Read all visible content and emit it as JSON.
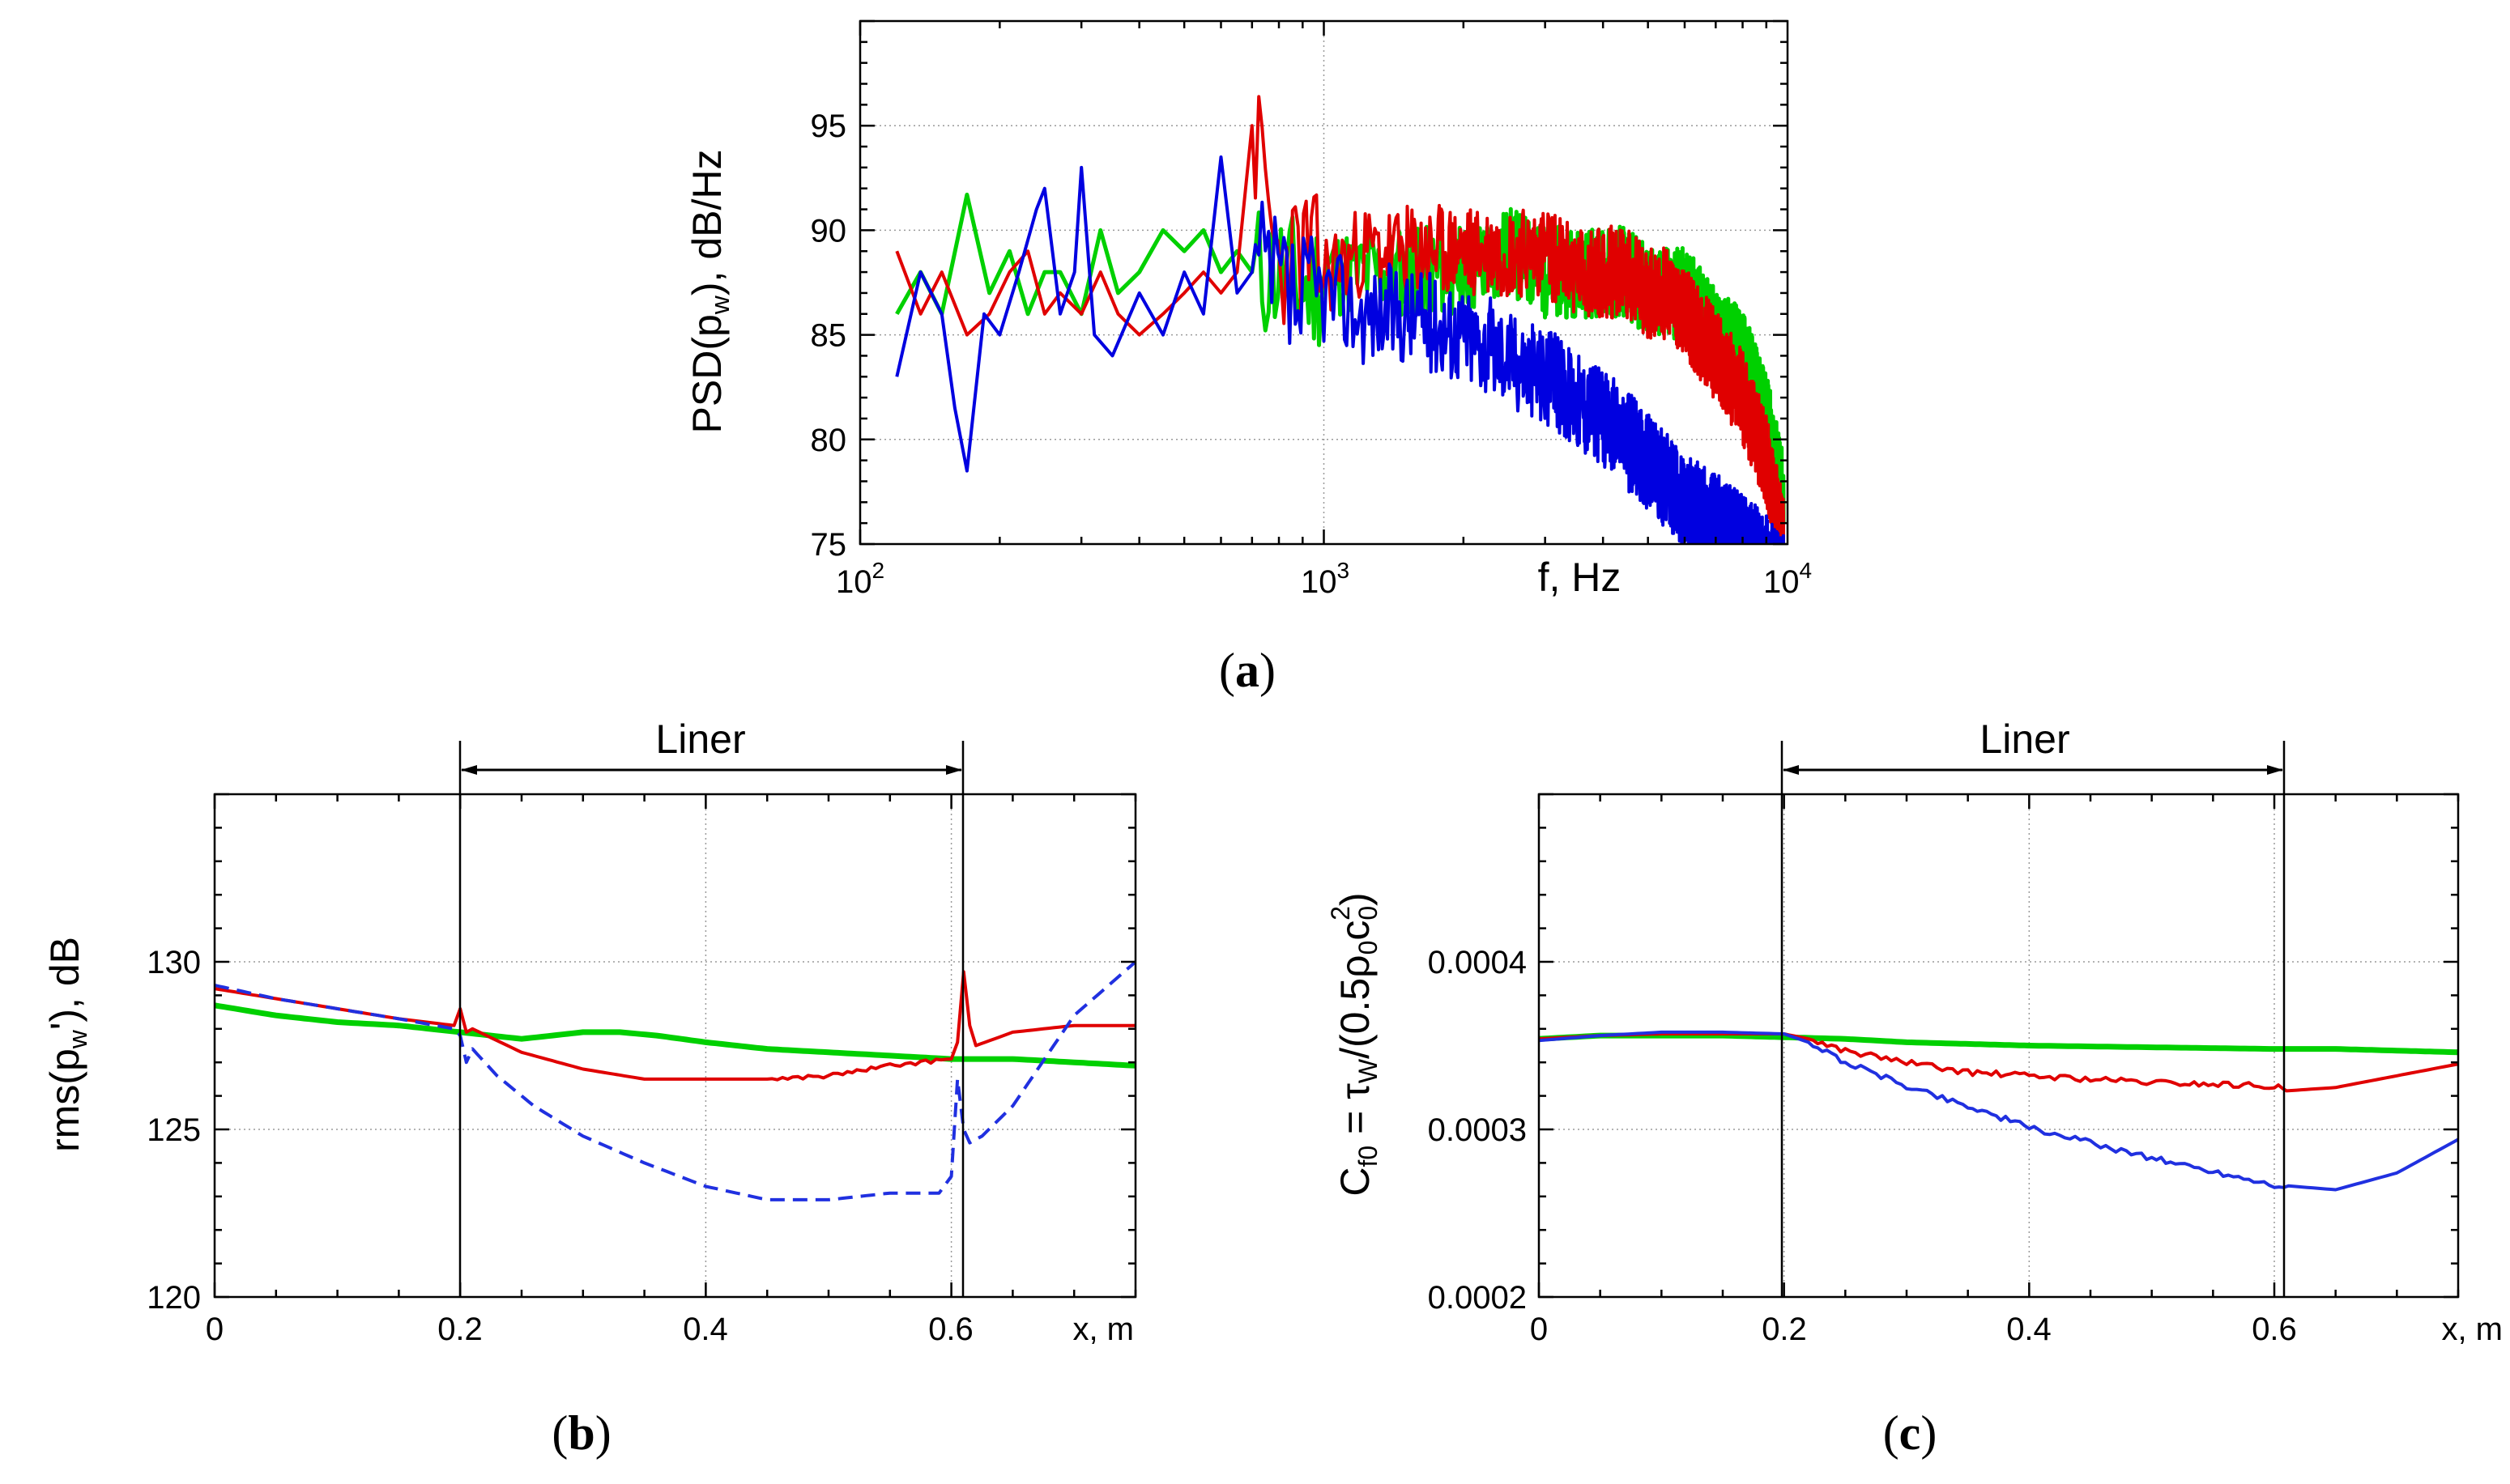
{
  "chart_data": [
    {
      "id": "a",
      "type": "line",
      "caption": "a",
      "xscale": "log",
      "xlim": [
        100,
        10000
      ],
      "ylim": [
        75,
        100
      ],
      "xlabel": "f, Hz",
      "ylabel_parts": {
        "main": "PSD(p",
        "sub": "w",
        "tail": "), dB/Hz"
      },
      "xticks": [
        {
          "base": "10",
          "exp": "2",
          "value": 100
        },
        {
          "base": "10",
          "exp": "3",
          "value": 1000
        },
        {
          "base": "10",
          "exp": "4",
          "value": 10000
        }
      ],
      "yticks": [
        75,
        80,
        85,
        90,
        95
      ],
      "grid": true,
      "series": [
        {
          "name": "green",
          "color": "#00d000",
          "width": 5,
          "dash": "",
          "x": [
            120,
            135,
            150,
            170,
            190,
            210,
            230,
            250,
            270,
            300,
            330,
            360,
            400,
            450,
            500,
            550,
            600,
            650,
            700,
            800,
            900,
            1000,
            1200,
            1500,
            2000,
            2500,
            3000,
            3500,
            4000,
            4500,
            5000,
            5500,
            6000,
            6500,
            7000,
            8000,
            9000,
            9800
          ],
          "y": [
            86,
            88,
            86,
            91.7,
            87,
            89,
            86,
            88,
            88,
            86,
            90,
            87,
            88,
            90,
            89,
            90,
            88,
            89,
            88,
            88,
            87,
            88,
            88,
            88,
            88,
            89,
            88,
            88,
            88,
            88,
            87,
            87,
            87,
            86,
            85,
            84,
            81,
            77
          ],
          "noise": 2.2,
          "seed": 11
        },
        {
          "name": "red",
          "color": "#e00000",
          "width": 4,
          "dash": "",
          "x": [
            120,
            135,
            150,
            170,
            190,
            210,
            230,
            250,
            270,
            300,
            330,
            360,
            400,
            450,
            500,
            550,
            600,
            650,
            700,
            800,
            900,
            1000,
            1200,
            1500,
            2000,
            2500,
            3000,
            3500,
            4000,
            4500,
            5000,
            5500,
            6000,
            6500,
            7000,
            8000,
            9000,
            9800
          ],
          "y": [
            89,
            86,
            88,
            85,
            86,
            88,
            89,
            86,
            87,
            86,
            88,
            86,
            85,
            86,
            87,
            88,
            87,
            88,
            95,
            88,
            89,
            88,
            89,
            89,
            89,
            89,
            89,
            88,
            88,
            88,
            87,
            87,
            86,
            85,
            84,
            82,
            79,
            75
          ],
          "noise": 2.2,
          "seed": 23
        },
        {
          "name": "blue",
          "color": "#0000e0",
          "width": 4,
          "dash": "",
          "x": [
            120,
            135,
            150,
            160,
            170,
            185,
            200,
            220,
            240,
            250,
            270,
            290,
            300,
            320,
            350,
            400,
            450,
            500,
            550,
            600,
            650,
            700,
            800,
            900,
            1000,
            1200,
            1500,
            2000,
            2500,
            3000,
            3500,
            4000,
            4500,
            5000,
            5500,
            6000,
            7000,
            8000,
            9000,
            9800
          ],
          "y": [
            83,
            88,
            86,
            81.5,
            78.5,
            86,
            85,
            88,
            91,
            92,
            86,
            88,
            93,
            85,
            84,
            87,
            85,
            88,
            86,
            93.5,
            87,
            88,
            87,
            86,
            87,
            86,
            86,
            85,
            84,
            83,
            82,
            81,
            80,
            79,
            78,
            77,
            76,
            75,
            74,
            73
          ],
          "noise": 2.4,
          "seed": 37
        }
      ]
    },
    {
      "id": "b",
      "type": "line",
      "caption": "b",
      "xlim": [
        0,
        0.75
      ],
      "ylim": [
        120,
        135
      ],
      "xlabel": "x, m",
      "ylabel_parts": {
        "main": "rms(p",
        "sub": "w",
        "tail": "'), dB"
      },
      "xticks": [
        {
          "label": "0",
          "value": 0
        },
        {
          "label": "0.2",
          "value": 0.2
        },
        {
          "label": "0.4",
          "value": 0.4
        },
        {
          "label": "0.6",
          "value": 0.6
        }
      ],
      "yticks": [
        {
          "label": "120",
          "value": 120
        },
        {
          "label": "125",
          "value": 125
        },
        {
          "label": "130",
          "value": 130
        }
      ],
      "grid": true,
      "liner": {
        "label": "Liner",
        "x_start": 0.2,
        "x_end": 0.61
      },
      "series": [
        {
          "name": "green",
          "color": "#00d000",
          "width": 7,
          "dash": "",
          "x": [
            0,
            0.05,
            0.1,
            0.15,
            0.2,
            0.25,
            0.3,
            0.33,
            0.36,
            0.4,
            0.45,
            0.5,
            0.55,
            0.6,
            0.65,
            0.7,
            0.75
          ],
          "y": [
            128.7,
            128.4,
            128.2,
            128.1,
            127.9,
            127.7,
            127.9,
            127.9,
            127.8,
            127.6,
            127.4,
            127.3,
            127.2,
            127.1,
            127.1,
            127.0,
            126.9
          ]
        },
        {
          "name": "red",
          "color": "#e00000",
          "width": 4,
          "dash": "",
          "x": [
            0,
            0.05,
            0.1,
            0.15,
            0.195,
            0.2,
            0.205,
            0.21,
            0.25,
            0.3,
            0.35,
            0.4,
            0.45,
            0.5,
            0.55,
            0.6,
            0.605,
            0.61,
            0.615,
            0.62,
            0.65,
            0.7,
            0.75
          ],
          "y": [
            129.2,
            128.9,
            128.6,
            128.3,
            128.1,
            128.6,
            127.9,
            128.0,
            127.3,
            126.8,
            126.5,
            126.5,
            126.5,
            126.6,
            126.9,
            127.1,
            127.6,
            129.7,
            128.1,
            127.5,
            127.9,
            128.1,
            128.1
          ]
        },
        {
          "name": "blue",
          "color": "#2030e0",
          "width": 4,
          "dash": "18 10",
          "x": [
            0,
            0.05,
            0.1,
            0.15,
            0.195,
            0.2,
            0.205,
            0.21,
            0.23,
            0.26,
            0.3,
            0.35,
            0.4,
            0.45,
            0.5,
            0.55,
            0.59,
            0.6,
            0.605,
            0.61,
            0.615,
            0.625,
            0.65,
            0.7,
            0.75
          ],
          "y": [
            129.3,
            128.9,
            128.6,
            128.3,
            128.0,
            127.8,
            127.0,
            127.4,
            126.6,
            125.7,
            124.8,
            124.0,
            123.3,
            122.9,
            122.9,
            123.1,
            123.1,
            123.6,
            126.5,
            125.0,
            124.6,
            124.8,
            125.7,
            128.4,
            130.0
          ]
        }
      ]
    },
    {
      "id": "c",
      "type": "line",
      "caption": "c",
      "xlim": [
        0,
        0.75
      ],
      "ylim": [
        0.0002,
        0.0005
      ],
      "xlabel": "x, m",
      "ylabel_parts": {
        "p1": "C",
        "s1": "f0",
        "p2": " = τ",
        "s2": "W",
        "p3": "/(0.5ρ",
        "s3": "0",
        "p4": "c",
        "s4": "0",
        "sup": "2",
        "p5": ")"
      },
      "xticks": [
        {
          "label": "0",
          "value": 0
        },
        {
          "label": "0.2",
          "value": 0.2
        },
        {
          "label": "0.4",
          "value": 0.4
        },
        {
          "label": "0.6",
          "value": 0.6
        }
      ],
      "yticks": [
        {
          "label": "0.0002",
          "value": 0.0002
        },
        {
          "label": "0.0003",
          "value": 0.0003
        },
        {
          "label": "0.0004",
          "value": 0.0004
        }
      ],
      "grid": true,
      "liner": {
        "label": "Liner",
        "x_start": 0.2,
        "x_end": 0.61
      },
      "series": [
        {
          "name": "green",
          "color": "#00d000",
          "width": 7,
          "dash": "",
          "x": [
            0,
            0.05,
            0.1,
            0.15,
            0.2,
            0.25,
            0.3,
            0.4,
            0.5,
            0.6,
            0.65,
            0.7,
            0.75
          ],
          "y": [
            0.000354,
            0.000356,
            0.000356,
            0.000356,
            0.000355,
            0.000354,
            0.000352,
            0.00035,
            0.000349,
            0.000348,
            0.000348,
            0.000347,
            0.000346
          ]
        },
        {
          "name": "red",
          "color": "#e00000",
          "width": 4,
          "dash": "",
          "x": [
            0,
            0.05,
            0.1,
            0.15,
            0.2,
            0.22,
            0.25,
            0.3,
            0.35,
            0.4,
            0.45,
            0.5,
            0.55,
            0.6,
            0.61,
            0.65,
            0.7,
            0.75
          ],
          "y": [
            0.000354,
            0.000356,
            0.000357,
            0.000357,
            0.000357,
            0.000354,
            0.000347,
            0.00034,
            0.000334,
            0.000332,
            0.00033,
            0.000328,
            0.000327,
            0.000326,
            0.000323,
            0.000325,
            0.000332,
            0.000339
          ]
        },
        {
          "name": "blue",
          "color": "#2030e0",
          "width": 4,
          "dash": "",
          "x": [
            0,
            0.05,
            0.1,
            0.15,
            0.2,
            0.22,
            0.25,
            0.3,
            0.35,
            0.4,
            0.45,
            0.5,
            0.55,
            0.6,
            0.65,
            0.7,
            0.75
          ],
          "y": [
            0.000353,
            0.000356,
            0.000358,
            0.000358,
            0.000357,
            0.000352,
            0.00034,
            0.000326,
            0.000314,
            0.000301,
            0.000292,
            0.000283,
            0.000275,
            0.000267,
            0.000264,
            0.000274,
            0.000294
          ]
        }
      ]
    }
  ]
}
